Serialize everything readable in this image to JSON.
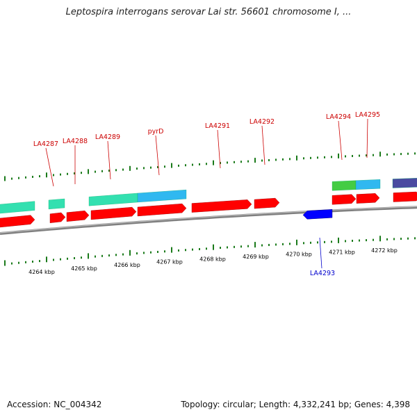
{
  "title": "Leptospira interrogans serovar Lai str. 56601 chromosome I, ...",
  "footer": {
    "accession": "Accession: NC_004342",
    "summary": "Topology: circular; Length: 4,332,241 bp; Genes: 4,398"
  },
  "colors": {
    "forward_gene": "#ff0000",
    "reverse_gene": "#0000ff",
    "forward_label": "#cc0000",
    "reverse_label": "#0000cc",
    "tick": "#1a7a1a",
    "backbone": "#808080",
    "teal": "#33e0b0",
    "cyan": "#30b8f0",
    "green": "#44cc44",
    "purple": "#4a4aa0",
    "cyan_dark": "#20c0c8"
  },
  "scale": {
    "unit": "kbp",
    "labels": [
      "4264 kbp",
      "4265 kbp",
      "4266 kbp",
      "4267 kbp",
      "4268 kbp",
      "4269 kbp",
      "4270 kbp",
      "4271 kbp",
      "4272 kbp"
    ]
  },
  "forward_gene_labels": [
    "LA4287",
    "LA4288",
    "LA4289",
    "pyrD",
    "LA4291",
    "LA4292",
    "LA4294",
    "LA4295"
  ],
  "reverse_gene_labels": [
    "LA4293"
  ]
}
